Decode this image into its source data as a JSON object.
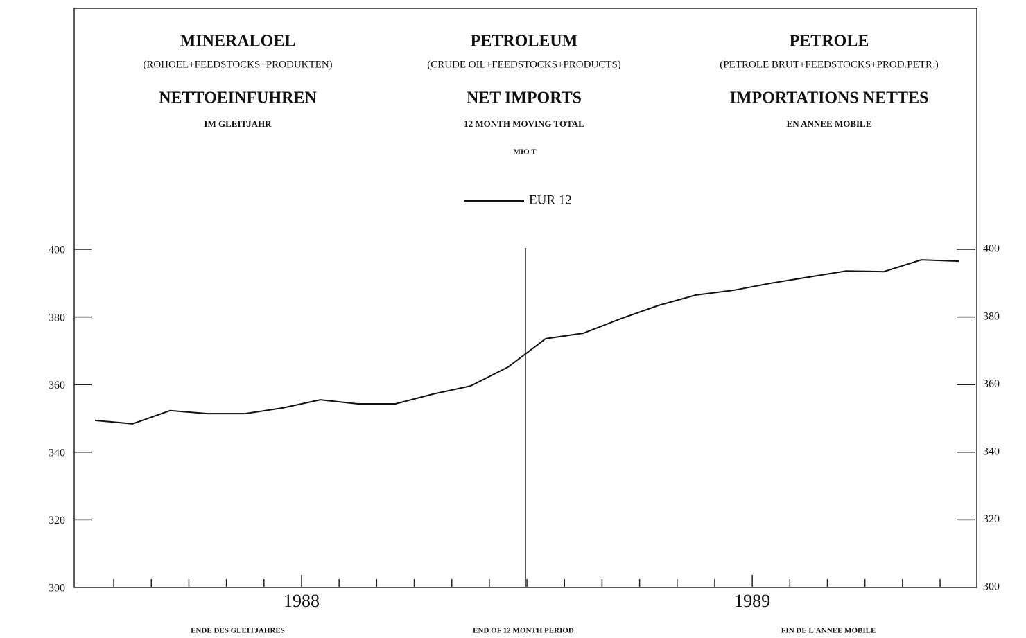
{
  "chart_data": {
    "type": "line",
    "headers": [
      {
        "title": "MINERALOEL",
        "subtitle": "(ROHOEL+FEEDSTOCKS+PRODUKTEN)",
        "heading": "NETTOEINFUHREN",
        "note": "IM GLEITJAHR"
      },
      {
        "title": "PETROLEUM",
        "subtitle": "(CRUDE OIL+FEEDSTOCKS+PRODUCTS)",
        "heading": "NET IMPORTS",
        "note": "12 MONTH MOVING TOTAL"
      },
      {
        "title": "PETROLE",
        "subtitle": "(PETROLE BRUT+FEEDSTOCKS+PROD.PETR.)",
        "heading": "IMPORTATIONS NETTES",
        "note": "EN ANNEE MOBILE"
      }
    ],
    "unit": "MIO T",
    "footers": [
      "ENDE DES GLEITJAHRES",
      "END OF 12 MONTH PERIOD",
      "FIN DE L'ANNEE MOBILE"
    ],
    "categories": [
      null,
      null,
      null,
      null,
      null,
      null,
      null,
      null,
      null,
      null,
      null,
      null,
      null,
      null,
      null,
      null,
      null,
      null,
      null,
      null,
      null,
      null,
      null,
      null
    ],
    "year_labels": [
      "1988",
      "1989"
    ],
    "series": [
      {
        "name": "EUR 12",
        "color": "#111111",
        "values": [
          349.4,
          348.4,
          352.3,
          351.4,
          351.4,
          353.1,
          355.5,
          354.3,
          354.3,
          357.2,
          359.6,
          365.2,
          373.6,
          375.2,
          379.5,
          383.4,
          386.5,
          387.9,
          390,
          391.8,
          393.6,
          393.4,
          396.9,
          396.5
        ]
      }
    ],
    "ylim": [
      300,
      400
    ],
    "yticks": [
      300,
      320,
      340,
      360,
      380,
      400
    ],
    "y2lim": [
      300,
      400
    ],
    "y2ticks": [
      300,
      320,
      340,
      360,
      380,
      400
    ]
  }
}
